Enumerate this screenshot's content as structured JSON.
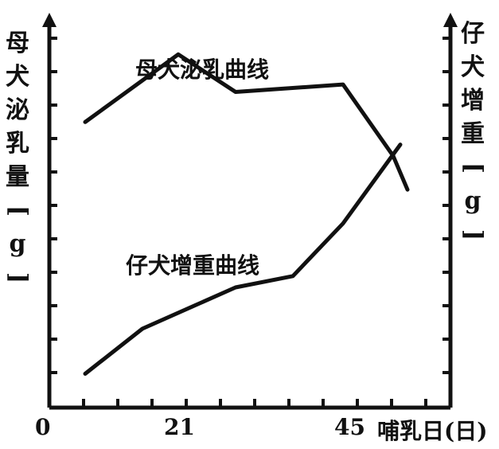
{
  "chart_data": {
    "type": "line",
    "title": "",
    "xlabel": "哺乳日(日)",
    "ylabel_left": "母犬泌乳量[g]",
    "ylabel_right": "仔犬增重[g]",
    "x_tick_labels": [
      "0",
      "21",
      "45"
    ],
    "xlim": [
      0,
      56
    ],
    "ylim": [
      0,
      100
    ],
    "grid": false,
    "series": [
      {
        "name": "母犬泌乳曲线",
        "x": [
          5,
          18,
          26,
          41,
          48,
          50
        ],
        "y": [
          76,
          94,
          84,
          86,
          67,
          58
        ]
      },
      {
        "name": "仔犬增重曲线",
        "x": [
          5,
          13,
          26,
          34,
          41,
          49
        ],
        "y": [
          9,
          21,
          32,
          35,
          49,
          70
        ]
      }
    ]
  }
}
